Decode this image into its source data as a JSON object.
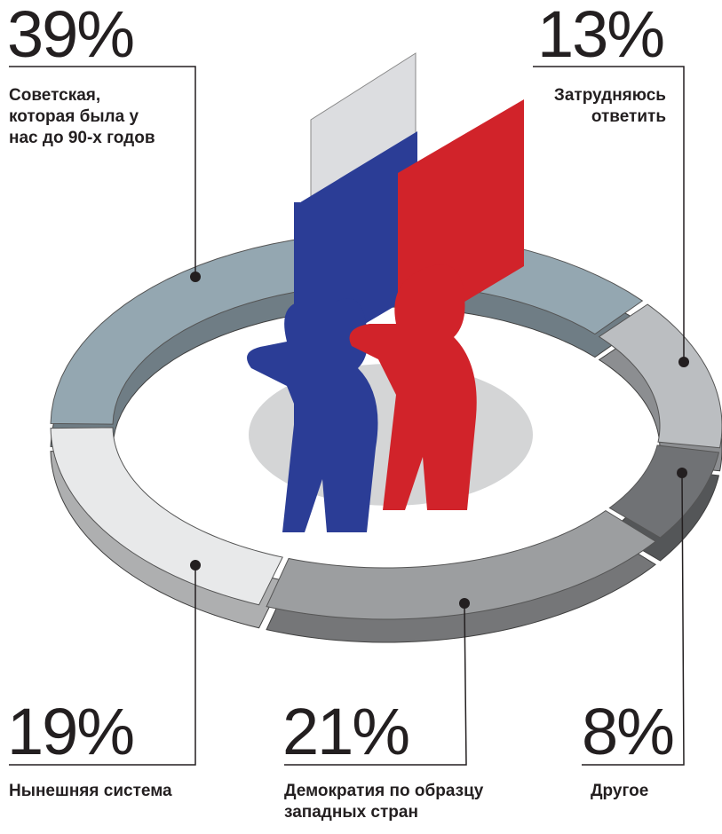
{
  "chart_data": {
    "type": "pie",
    "categories": [
      "Советская, которая была у нас до 90-х годов",
      "Затрудняюсь ответить",
      "Другое",
      "Демократия по образцу западных стран",
      "Нынешняя система"
    ],
    "values": [
      39,
      13,
      8,
      21,
      19
    ],
    "value_labels": [
      "39%",
      "13%",
      "8%",
      "21%",
      "19%"
    ],
    "colors": [
      "#94a7b1",
      "#bbbec1",
      "#707275",
      "#9c9ea0",
      "#e8e9ea"
    ]
  }
}
